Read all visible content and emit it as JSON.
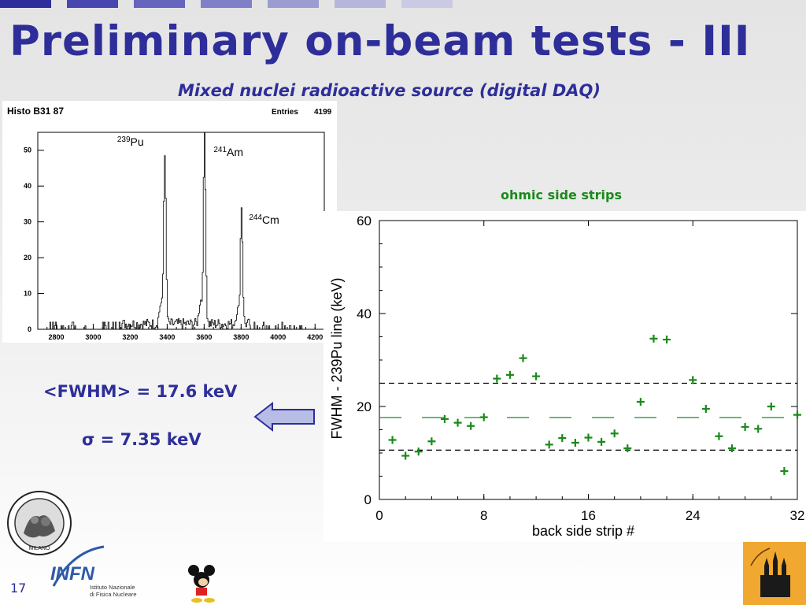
{
  "slide": {
    "title": "Preliminary on-beam tests - III",
    "subtitle": "Mixed nuclei radioactive source (digital DAQ)",
    "fwhm_text": "<FWHM> = 17.6 keV",
    "sigma_text": "σ = 7.35 keV",
    "page_number": "17",
    "ohmic_label": "ohmic side strips",
    "top_bar_colors": [
      "#2e2e9a",
      "#4747b0",
      "#6464bc",
      "#8080c8",
      "#9c9cd2",
      "#b6b6dc",
      "#cacae4"
    ]
  },
  "logos": {
    "poli_label": "MILANO",
    "infn_name": "INFN",
    "infn_line1": "Istituto Nazionale",
    "infn_line2": "di Fisica Nucleare"
  },
  "chart_data": [
    {
      "type": "histogram",
      "title": "Histo B31 87",
      "stats_label": "Entries",
      "stats_value": "4199",
      "xlim": [
        2700,
        4250
      ],
      "ylim": [
        0,
        55
      ],
      "xticks": [
        2800,
        3000,
        3200,
        3400,
        3600,
        3800,
        4000,
        4200
      ],
      "yticks": [
        0,
        10,
        20,
        30,
        40,
        50
      ],
      "peaks": [
        {
          "sup": "239",
          "name": "Pu",
          "x": 3385,
          "height": 48,
          "sigma": 6
        },
        {
          "sup": "241",
          "name": "Am",
          "x": 3600,
          "height": 55,
          "sigma": 6
        },
        {
          "sup": "244",
          "name": "Cm",
          "x": 3800,
          "height": 33,
          "sigma": 6
        }
      ],
      "background_level": 1
    },
    {
      "type": "scatter",
      "ylabel_prefix": "FWHM - 239",
      "ylabel_suffix": "Pu line (keV)",
      "xlabel": "back side strip #",
      "xlim": [
        0,
        32
      ],
      "ylim": [
        0,
        60
      ],
      "xticks": [
        0,
        8,
        16,
        24,
        32
      ],
      "yticks": [
        0,
        20,
        40,
        60
      ],
      "mean": 17.6,
      "band": [
        10.6,
        25
      ],
      "color": "#1a8a1a",
      "x": [
        1,
        2,
        3,
        4,
        5,
        6,
        7,
        8,
        9,
        10,
        11,
        12,
        13,
        14,
        15,
        16,
        17,
        18,
        19,
        20,
        21,
        22,
        24,
        25,
        26,
        27,
        28,
        29,
        30,
        31,
        32
      ],
      "y": [
        12.8,
        9.4,
        10.3,
        12.5,
        17.3,
        16.5,
        15.8,
        17.7,
        26,
        26.8,
        30.4,
        26.5,
        11.8,
        13.2,
        12.2,
        13.3,
        12.4,
        14.2,
        11,
        21,
        34.6,
        34.4,
        25.7,
        19.5,
        13.6,
        11,
        15.6,
        15.2,
        20,
        6.1,
        18.2
      ]
    }
  ]
}
